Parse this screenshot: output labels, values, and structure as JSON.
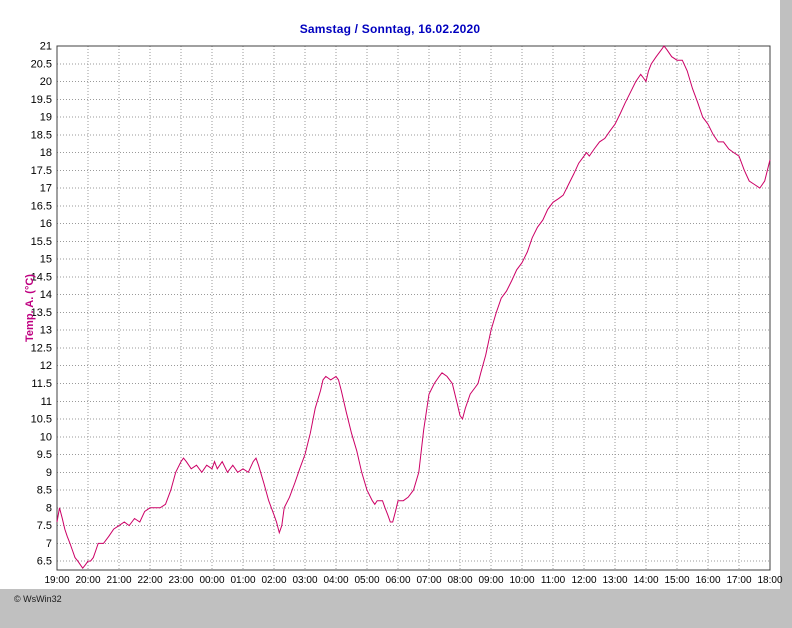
{
  "window": {
    "title": "Samstag / Sonntag, 16.02.2020"
  },
  "footer": {
    "copyright": "© WsWin32"
  },
  "chart_data": {
    "type": "line",
    "title": "Samstag / Sonntag, 16.02.2020",
    "xlabel": "",
    "ylabel": "Temp. A. (°C)",
    "series_name": "Temp. A.",
    "grid": true,
    "legend_position": "none",
    "xlim": [
      0,
      23
    ],
    "ylim": [
      6.25,
      21
    ],
    "x_tick_labels": [
      "19:00",
      "20:00",
      "21:00",
      "22:00",
      "23:00",
      "00:00",
      "01:00",
      "02:00",
      "03:00",
      "04:00",
      "05:00",
      "06:00",
      "07:00",
      "08:00",
      "09:00",
      "10:00",
      "11:00",
      "12:00",
      "13:00",
      "14:00",
      "15:00",
      "16:00",
      "17:00",
      "18:00"
    ],
    "y_ticks": [
      6.5,
      7,
      7.5,
      8,
      8.5,
      9,
      9.5,
      10,
      10.5,
      11,
      11.5,
      12,
      12.5,
      13,
      13.5,
      14,
      14.5,
      15,
      15.5,
      16,
      16.5,
      17,
      17.5,
      18,
      18.5,
      19,
      19.5,
      20,
      20.5,
      21
    ],
    "colors": {
      "title": "#0000bf",
      "ylabel": "#bf0080",
      "line": "#cc0066",
      "grid": "#9a9a9a",
      "frame": "#404040",
      "window_gray": "#c0c0c0"
    },
    "points": [
      [
        0,
        7.6
      ],
      [
        0.08,
        8
      ],
      [
        0.17,
        7.7
      ],
      [
        0.25,
        7.4
      ],
      [
        0.33,
        7.2
      ],
      [
        0.42,
        7
      ],
      [
        0.5,
        6.8
      ],
      [
        0.58,
        6.6
      ],
      [
        0.67,
        6.5
      ],
      [
        0.75,
        6.4
      ],
      [
        0.83,
        6.3
      ],
      [
        0.92,
        6.4
      ],
      [
        1,
        6.5
      ],
      [
        1.08,
        6.5
      ],
      [
        1.17,
        6.6
      ],
      [
        1.25,
        6.8
      ],
      [
        1.33,
        7
      ],
      [
        1.5,
        7
      ],
      [
        1.67,
        7.2
      ],
      [
        1.83,
        7.4
      ],
      [
        2,
        7.5
      ],
      [
        2.17,
        7.6
      ],
      [
        2.33,
        7.5
      ],
      [
        2.5,
        7.7
      ],
      [
        2.67,
        7.6
      ],
      [
        2.83,
        7.9
      ],
      [
        3,
        8
      ],
      [
        3.17,
        8
      ],
      [
        3.33,
        8
      ],
      [
        3.5,
        8.1
      ],
      [
        3.67,
        8.5
      ],
      [
        3.83,
        9
      ],
      [
        4,
        9.3
      ],
      [
        4.08,
        9.4
      ],
      [
        4.17,
        9.3
      ],
      [
        4.33,
        9.1
      ],
      [
        4.5,
        9.2
      ],
      [
        4.67,
        9
      ],
      [
        4.83,
        9.2
      ],
      [
        5,
        9.1
      ],
      [
        5.08,
        9.3
      ],
      [
        5.17,
        9.1
      ],
      [
        5.33,
        9.3
      ],
      [
        5.5,
        9
      ],
      [
        5.67,
        9.2
      ],
      [
        5.83,
        9
      ],
      [
        6,
        9.1
      ],
      [
        6.17,
        9
      ],
      [
        6.33,
        9.3
      ],
      [
        6.42,
        9.4
      ],
      [
        6.5,
        9.2
      ],
      [
        6.67,
        8.7
      ],
      [
        6.83,
        8.2
      ],
      [
        7,
        7.8
      ],
      [
        7.08,
        7.6
      ],
      [
        7.17,
        7.3
      ],
      [
        7.25,
        7.5
      ],
      [
        7.33,
        8
      ],
      [
        7.5,
        8.3
      ],
      [
        7.67,
        8.7
      ],
      [
        7.83,
        9.1
      ],
      [
        8,
        9.5
      ],
      [
        8.17,
        10.1
      ],
      [
        8.33,
        10.8
      ],
      [
        8.5,
        11.3
      ],
      [
        8.58,
        11.6
      ],
      [
        8.67,
        11.7
      ],
      [
        8.83,
        11.6
      ],
      [
        9,
        11.7
      ],
      [
        9.08,
        11.6
      ],
      [
        9.17,
        11.3
      ],
      [
        9.33,
        10.7
      ],
      [
        9.5,
        10.1
      ],
      [
        9.67,
        9.6
      ],
      [
        9.83,
        9
      ],
      [
        10,
        8.5
      ],
      [
        10.17,
        8.2
      ],
      [
        10.25,
        8.1
      ],
      [
        10.33,
        8.2
      ],
      [
        10.5,
        8.2
      ],
      [
        10.58,
        8
      ],
      [
        10.67,
        7.8
      ],
      [
        10.75,
        7.6
      ],
      [
        10.83,
        7.6
      ],
      [
        10.92,
        7.9
      ],
      [
        11,
        8.2
      ],
      [
        11.17,
        8.2
      ],
      [
        11.33,
        8.3
      ],
      [
        11.5,
        8.5
      ],
      [
        11.67,
        9
      ],
      [
        11.83,
        10.2
      ],
      [
        12,
        11.2
      ],
      [
        12.17,
        11.5
      ],
      [
        12.33,
        11.7
      ],
      [
        12.42,
        11.8
      ],
      [
        12.58,
        11.7
      ],
      [
        12.75,
        11.5
      ],
      [
        12.92,
        10.9
      ],
      [
        13,
        10.6
      ],
      [
        13.08,
        10.5
      ],
      [
        13.17,
        10.8
      ],
      [
        13.33,
        11.2
      ],
      [
        13.5,
        11.4
      ],
      [
        13.58,
        11.5
      ],
      [
        13.67,
        11.8
      ],
      [
        13.83,
        12.3
      ],
      [
        14,
        13
      ],
      [
        14.17,
        13.5
      ],
      [
        14.33,
        13.9
      ],
      [
        14.5,
        14.1
      ],
      [
        14.67,
        14.4
      ],
      [
        14.83,
        14.7
      ],
      [
        15,
        14.9
      ],
      [
        15.17,
        15.2
      ],
      [
        15.33,
        15.6
      ],
      [
        15.5,
        15.9
      ],
      [
        15.67,
        16.1
      ],
      [
        15.83,
        16.4
      ],
      [
        16,
        16.6
      ],
      [
        16.17,
        16.7
      ],
      [
        16.33,
        16.8
      ],
      [
        16.5,
        17.1
      ],
      [
        16.67,
        17.4
      ],
      [
        16.83,
        17.7
      ],
      [
        17,
        17.9
      ],
      [
        17.08,
        18
      ],
      [
        17.17,
        17.9
      ],
      [
        17.33,
        18.1
      ],
      [
        17.5,
        18.3
      ],
      [
        17.67,
        18.4
      ],
      [
        17.83,
        18.6
      ],
      [
        18,
        18.8
      ],
      [
        18.17,
        19.1
      ],
      [
        18.33,
        19.4
      ],
      [
        18.5,
        19.7
      ],
      [
        18.67,
        20
      ],
      [
        18.83,
        20.2
      ],
      [
        18.92,
        20.1
      ],
      [
        19,
        20
      ],
      [
        19.08,
        20.3
      ],
      [
        19.17,
        20.5
      ],
      [
        19.33,
        20.7
      ],
      [
        19.5,
        20.9
      ],
      [
        19.58,
        21
      ],
      [
        19.67,
        20.9
      ],
      [
        19.83,
        20.7
      ],
      [
        20,
        20.6
      ],
      [
        20.17,
        20.6
      ],
      [
        20.33,
        20.3
      ],
      [
        20.5,
        19.8
      ],
      [
        20.67,
        19.4
      ],
      [
        20.83,
        19
      ],
      [
        21,
        18.8
      ],
      [
        21.17,
        18.5
      ],
      [
        21.33,
        18.3
      ],
      [
        21.5,
        18.3
      ],
      [
        21.67,
        18.1
      ],
      [
        21.83,
        18
      ],
      [
        22,
        17.9
      ],
      [
        22.17,
        17.5
      ],
      [
        22.33,
        17.2
      ],
      [
        22.5,
        17.1
      ],
      [
        22.67,
        17
      ],
      [
        22.83,
        17.2
      ],
      [
        23,
        17.8
      ]
    ]
  }
}
